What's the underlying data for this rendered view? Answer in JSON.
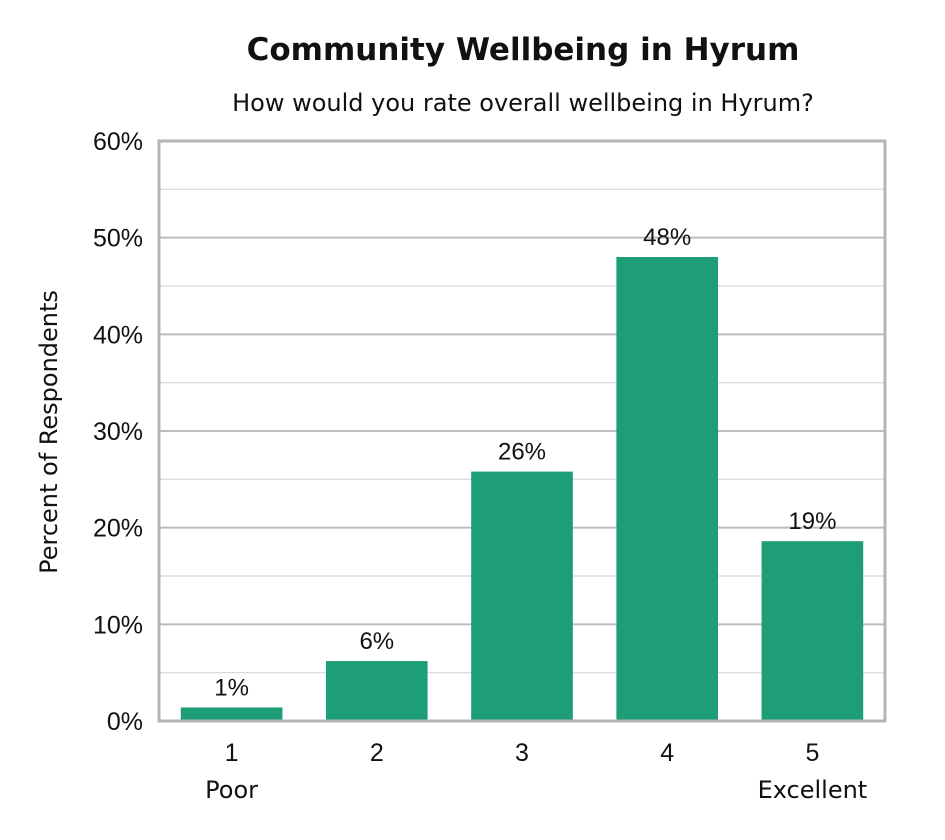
{
  "chart_data": {
    "type": "bar",
    "title": "Community Wellbeing in Hyrum",
    "subtitle": "How would you rate overall wellbeing in Hyrum?",
    "xlabel": "",
    "ylabel": "Percent of Respondents",
    "categories": [
      "1",
      "2",
      "3",
      "4",
      "5"
    ],
    "category_anchors": [
      "Poor",
      "",
      "",
      "",
      "Excellent"
    ],
    "values": [
      1.4,
      6.2,
      25.8,
      48.0,
      18.6
    ],
    "data_labels": [
      "1%",
      "6%",
      "26%",
      "48%",
      "19%"
    ],
    "ylim": [
      0,
      60
    ],
    "yticks": [
      0,
      10,
      20,
      30,
      40,
      50,
      60
    ],
    "ytick_labels": [
      "0%",
      "10%",
      "20%",
      "30%",
      "40%",
      "50%",
      "60%"
    ],
    "grid": true,
    "legend": "none",
    "colors": {
      "bar": "#1e9e78",
      "grid": "#c8c8c8",
      "frame": "#b4b4b4",
      "text": "#111111"
    }
  }
}
